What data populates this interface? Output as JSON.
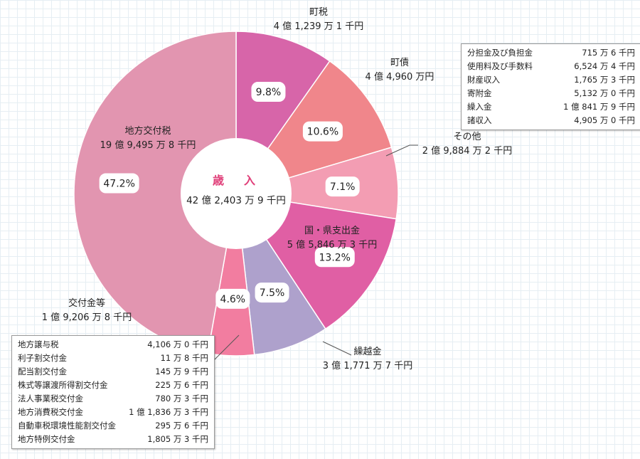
{
  "chart_data": {
    "type": "pie",
    "center": {
      "title": "歳　入",
      "total": "42 億 2,403 万 9 千円"
    },
    "slices": [
      {
        "name": "町税",
        "amount": "4 億 1,239 万 1 千円",
        "percent": 9.8,
        "percent_label": "9.8%",
        "color": "#d765a9"
      },
      {
        "name": "町債",
        "amount": "4 億 4,960 万円",
        "percent": 10.6,
        "percent_label": "10.6%",
        "color": "#f0868b"
      },
      {
        "name": "その他",
        "amount": "2 億 9,884 万 2 千円",
        "percent": 7.1,
        "percent_label": "7.1%",
        "color": "#f39db3"
      },
      {
        "name": "国・県支出金",
        "amount": "5 億 5,846 万 3 千円",
        "percent": 13.2,
        "percent_label": "13.2%",
        "color": "#e05fa4"
      },
      {
        "name": "繰越金",
        "amount": "3 億 1,771 万 7 千円",
        "percent": 7.5,
        "percent_label": "7.5%",
        "color": "#aea1cc"
      },
      {
        "name": "交付金等",
        "amount": "1 億 9,206 万 8 千円",
        "percent": 4.6,
        "percent_label": "4.6%",
        "color": "#f27da0"
      },
      {
        "name": "地方交付税",
        "amount": "19 億 9,495 万 8 千円",
        "percent": 47.2,
        "percent_label": "47.2%",
        "color": "#e295b0"
      }
    ]
  },
  "other_details": [
    {
      "name": "分担金及び負担金",
      "amount": "715 万 6 千円"
    },
    {
      "name": "使用料及び手数料",
      "amount": "6,524 万 4 千円"
    },
    {
      "name": "財産収入",
      "amount": "1,765 万 3 千円"
    },
    {
      "name": "寄附金",
      "amount": "5,132 万 0 千円"
    },
    {
      "name": "繰入金",
      "amount": "1 億 841 万 9 千円"
    },
    {
      "name": "諸収入",
      "amount": "4,905 万 0 千円"
    }
  ],
  "grant_details": [
    {
      "name": "地方譲与税",
      "amount": "4,106 万 0 千円"
    },
    {
      "name": "利子割交付金",
      "amount": "11 万 8 千円"
    },
    {
      "name": "配当割交付金",
      "amount": "145 万 9 千円"
    },
    {
      "name": "株式等譲渡所得割交付金",
      "amount": "225 万 6 千円"
    },
    {
      "name": "法人事業税交付金",
      "amount": "780 万 3 千円"
    },
    {
      "name": "地方消費税交付金",
      "amount": "1 億 1,836 万 3 千円"
    },
    {
      "name": "自動車税環境性能割交付金",
      "amount": "295 万 6 千円"
    },
    {
      "name": "地方特例交付金",
      "amount": "1,805 万 3 千円"
    }
  ]
}
